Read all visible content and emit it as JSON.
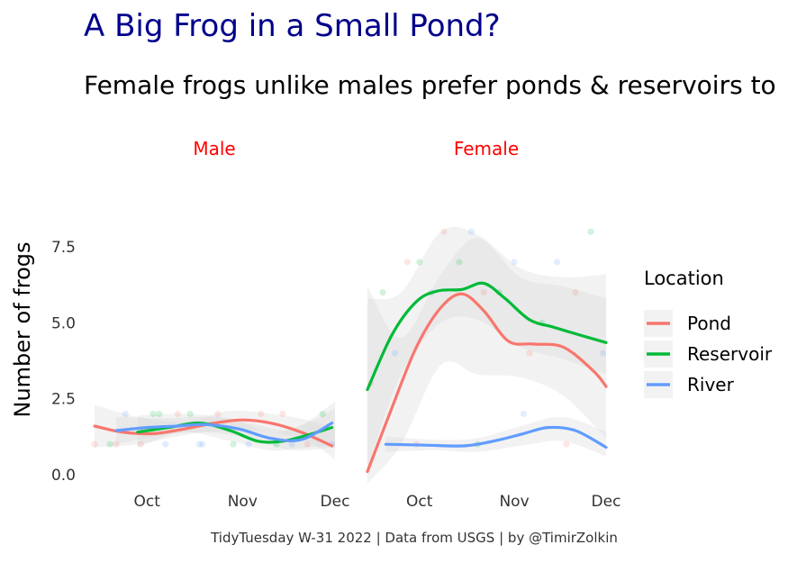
{
  "title": "A Big Frog in a Small Pond?",
  "subtitle": "Female frogs unlike males prefer ponds & reservoirs to",
  "caption": "TidyTuesday W-31 2022 | Data from USGS | by @TimirZolkin",
  "colors": {
    "title": "#00008B",
    "strip": "#ff0000",
    "Pond": "#F8766D",
    "Reservoir": "#00BA38",
    "River": "#619CFF",
    "band": "#d9d9d9"
  },
  "chart_data": {
    "type": "line",
    "ylabel": "Number of frogs",
    "xlabel": "",
    "ylim": [
      -0.3,
      8.6
    ],
    "y_ticks": [
      0,
      2.5,
      5,
      7.5
    ],
    "y_tick_labels": [
      "0.0",
      "2.5",
      "5.0",
      "7.5"
    ],
    "x_domain": [
      "2021-09-14",
      "2021-12-01"
    ],
    "x_ticks": [
      "2021-10-01",
      "2021-11-01",
      "2021-12-01"
    ],
    "x_tick_labels": [
      "Oct",
      "Nov",
      "Dec"
    ],
    "grid": false,
    "legend": {
      "title": "Location",
      "placement": "right",
      "entries": [
        "Pond",
        "Reservoir",
        "River"
      ]
    },
    "panels": [
      {
        "label": "Male",
        "series": [
          {
            "name": "Pond",
            "x": [
              "2021-09-14",
              "2021-09-23",
              "2021-10-03",
              "2021-10-13",
              "2021-10-23",
              "2021-11-01",
              "2021-11-10",
              "2021-11-20",
              "2021-11-30"
            ],
            "y": [
              1.6,
              1.4,
              1.35,
              1.5,
              1.7,
              1.8,
              1.7,
              1.4,
              0.95
            ]
          },
          {
            "name": "Reservoir",
            "x": [
              "2021-09-28",
              "2021-10-08",
              "2021-10-18",
              "2021-10-28",
              "2021-11-06",
              "2021-11-14",
              "2021-11-22",
              "2021-11-30"
            ],
            "y": [
              1.4,
              1.55,
              1.7,
              1.45,
              1.1,
              1.1,
              1.3,
              1.55
            ]
          },
          {
            "name": "River",
            "x": [
              "2021-09-21",
              "2021-10-01",
              "2021-10-11",
              "2021-10-20",
              "2021-10-31",
              "2021-11-10",
              "2021-11-20",
              "2021-11-30"
            ],
            "y": [
              1.45,
              1.55,
              1.6,
              1.65,
              1.5,
              1.2,
              1.15,
              1.7
            ]
          }
        ],
        "bands": [
          {
            "name": "Pond",
            "x": [
              "2021-09-14",
              "2021-09-28",
              "2021-10-13",
              "2021-10-28",
              "2021-11-10",
              "2021-11-22",
              "2021-12-01"
            ],
            "lower": [
              0.9,
              1.0,
              1.3,
              1.45,
              1.4,
              1.1,
              0.5
            ],
            "upper": [
              2.3,
              1.9,
              1.75,
              2.1,
              2.0,
              1.8,
              1.5
            ]
          },
          {
            "name": "Reservoir",
            "x": [
              "2021-09-28",
              "2021-10-13",
              "2021-10-28",
              "2021-11-10",
              "2021-11-22",
              "2021-12-01"
            ],
            "lower": [
              0.9,
              1.4,
              1.1,
              0.8,
              0.9,
              0.95
            ],
            "upper": [
              1.95,
              2.0,
              1.85,
              1.4,
              1.7,
              2.2
            ]
          },
          {
            "name": "River",
            "x": [
              "2021-09-21",
              "2021-10-06",
              "2021-10-20",
              "2021-11-03",
              "2021-11-17",
              "2021-12-01"
            ],
            "lower": [
              1.0,
              1.3,
              1.4,
              1.2,
              0.8,
              0.9
            ],
            "upper": [
              1.9,
              1.85,
              1.9,
              1.7,
              1.5,
              2.4
            ]
          }
        ],
        "points": {
          "x": [
            "2021-09-14",
            "2021-09-19",
            "2021-09-24",
            "2021-09-29",
            "2021-10-03",
            "2021-10-07",
            "2021-10-11",
            "2021-10-15",
            "2021-10-19",
            "2021-10-24",
            "2021-10-29",
            "2021-11-03",
            "2021-11-07",
            "2021-11-12",
            "2021-11-17",
            "2021-11-22",
            "2021-11-27",
            "2021-11-30",
            "2021-09-21",
            "2021-10-05",
            "2021-10-18",
            "2021-11-14"
          ],
          "y": [
            1,
            1,
            2,
            1,
            2,
            1,
            2,
            2,
            1,
            2,
            1,
            1,
            2,
            1,
            1,
            1,
            2,
            1,
            1,
            2,
            1,
            2
          ]
        }
      },
      {
        "label": "Female",
        "series": [
          {
            "name": "Pond",
            "x": [
              "2021-09-14",
              "2021-09-22",
              "2021-09-30",
              "2021-10-08",
              "2021-10-15",
              "2021-10-22",
              "2021-10-30",
              "2021-11-07",
              "2021-11-17",
              "2021-11-27",
              "2021-12-01"
            ],
            "y": [
              0.1,
              2.2,
              4.2,
              5.5,
              5.95,
              5.4,
              4.4,
              4.3,
              4.2,
              3.4,
              2.9
            ]
          },
          {
            "name": "Reservoir",
            "x": [
              "2021-09-14",
              "2021-09-22",
              "2021-09-30",
              "2021-10-07",
              "2021-10-15",
              "2021-10-22",
              "2021-10-29",
              "2021-11-06",
              "2021-11-14",
              "2021-11-24",
              "2021-12-01"
            ],
            "y": [
              2.8,
              4.6,
              5.7,
              6.05,
              6.1,
              6.3,
              5.8,
              5.1,
              4.85,
              4.55,
              4.35
            ]
          },
          {
            "name": "River",
            "x": [
              "2021-09-20",
              "2021-10-03",
              "2021-10-16",
              "2021-10-26",
              "2021-11-04",
              "2021-11-12",
              "2021-11-21",
              "2021-12-01"
            ],
            "y": [
              1.0,
              0.97,
              0.95,
              1.12,
              1.35,
              1.55,
              1.45,
              0.9
            ]
          }
        ],
        "bands": [
          {
            "name": "Pond",
            "x": [
              "2021-09-14",
              "2021-09-25",
              "2021-10-08",
              "2021-10-20",
              "2021-11-03",
              "2021-11-17",
              "2021-12-01"
            ],
            "lower": [
              -0.3,
              1.0,
              3.6,
              3.3,
              3.2,
              2.6,
              1.2
            ],
            "upper": [
              6.2,
              4.5,
              6.6,
              7.8,
              6.5,
              6.2,
              5.8
            ]
          },
          {
            "name": "Reservoir",
            "x": [
              "2021-09-14",
              "2021-09-25",
              "2021-10-08",
              "2021-10-20",
              "2021-11-03",
              "2021-11-17",
              "2021-12-01"
            ],
            "lower": [
              0.2,
              3.3,
              5.0,
              5.1,
              4.2,
              3.8,
              3.3
            ],
            "upper": [
              5.8,
              6.0,
              8.0,
              7.9,
              6.8,
              6.5,
              6.6
            ]
          },
          {
            "name": "River",
            "x": [
              "2021-09-20",
              "2021-10-06",
              "2021-10-20",
              "2021-11-03",
              "2021-11-17",
              "2021-12-01"
            ],
            "lower": [
              0.75,
              0.8,
              0.75,
              0.95,
              1.1,
              0.6
            ],
            "upper": [
              1.25,
              1.15,
              1.2,
              1.6,
              1.9,
              1.4
            ]
          }
        ],
        "points": {
          "x": [
            "2021-09-15",
            "2021-09-19",
            "2021-09-23",
            "2021-09-27",
            "2021-10-01",
            "2021-10-05",
            "2021-10-09",
            "2021-10-14",
            "2021-10-18",
            "2021-10-22",
            "2021-10-27",
            "2021-11-01",
            "2021-11-06",
            "2021-11-10",
            "2021-11-15",
            "2021-11-21",
            "2021-11-26",
            "2021-11-30",
            "2021-09-30",
            "2021-10-20",
            "2021-11-04",
            "2021-11-18"
          ],
          "y": [
            3,
            6,
            4,
            7,
            7,
            6,
            8,
            7,
            8,
            6,
            6,
            7,
            4,
            5,
            7,
            6,
            8,
            4,
            1,
            1,
            2,
            1
          ]
        }
      }
    ]
  }
}
